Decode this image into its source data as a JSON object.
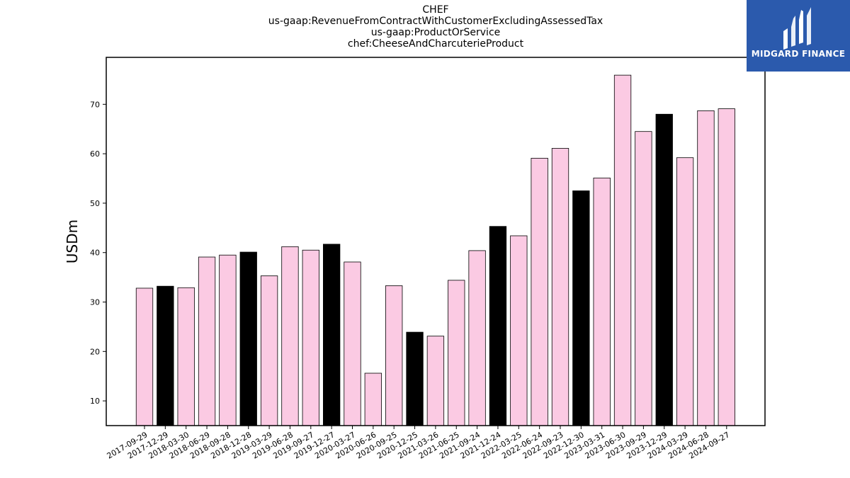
{
  "chart_data": {
    "type": "bar",
    "title_lines": [
      "CHEF",
      "us-gaap:RevenueFromContractWithCustomerExcludingAssessedTax",
      "us-gaap:ProductOrService",
      "chef:CheeseAndCharcuterieProduct"
    ],
    "ylabel": "USDm",
    "xlabel": "",
    "ylim": [
      5,
      79.5
    ],
    "yticks": [
      10,
      20,
      30,
      40,
      50,
      60,
      70
    ],
    "categories": [
      "2017-09-29",
      "2017-12-29",
      "2018-03-30",
      "2018-06-29",
      "2018-09-28",
      "2018-12-28",
      "2019-03-29",
      "2019-06-28",
      "2019-09-27",
      "2019-12-27",
      "2020-03-27",
      "2020-06-26",
      "2020-09-25",
      "2020-12-25",
      "2021-03-26",
      "2021-06-25",
      "2021-09-24",
      "2021-12-24",
      "2022-03-25",
      "2022-06-24",
      "2022-09-23",
      "2022-12-30",
      "2023-03-31",
      "2023-06-30",
      "2023-09-29",
      "2023-12-29",
      "2024-03-29",
      "2024-06-28",
      "2024-09-27"
    ],
    "values": [
      32.8,
      33.2,
      32.9,
      39.1,
      39.5,
      40.1,
      35.3,
      41.2,
      40.5,
      41.7,
      38.1,
      15.6,
      33.3,
      23.9,
      23.1,
      34.4,
      40.4,
      45.3,
      43.4,
      59.1,
      61.1,
      52.5,
      55.1,
      75.9,
      64.5,
      68.0,
      59.2,
      68.7,
      69.1
    ],
    "highlight": [
      false,
      true,
      false,
      false,
      false,
      true,
      false,
      false,
      false,
      true,
      false,
      false,
      false,
      true,
      false,
      false,
      false,
      true,
      false,
      false,
      false,
      true,
      false,
      false,
      false,
      true,
      false,
      false,
      false
    ],
    "colors": {
      "bar": "#fbcae3",
      "highlight": "#000000",
      "edge": "#000000"
    },
    "grid": false,
    "legend": "none"
  },
  "logo": {
    "text": "MIDGARD FINANCE",
    "color": "#2b5aad"
  }
}
